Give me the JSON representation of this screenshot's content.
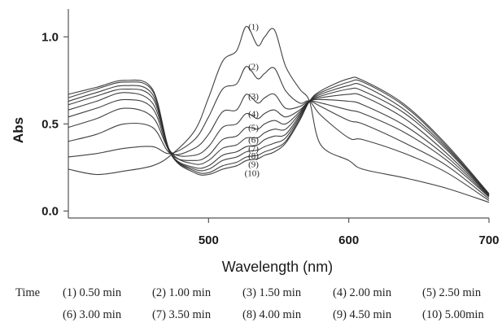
{
  "chart_data": {
    "type": "line",
    "xlabel": "Wavelength (nm)",
    "ylabel": "Abs",
    "xlim": [
      400,
      700
    ],
    "ylim": [
      -0.04,
      1.16
    ],
    "xticks": [
      "500",
      "600",
      "700"
    ],
    "yticks": [
      "0.0",
      "0.5",
      "1.0"
    ],
    "grid": false,
    "legend_position": "bottom",
    "series_color": "#2b2b2b",
    "x": [
      400,
      420,
      440,
      460,
      473,
      490,
      500,
      510,
      520,
      527,
      535,
      540,
      547,
      555,
      565,
      572,
      580,
      600,
      610,
      640,
      670,
      700
    ],
    "series": [
      {
        "name": "(1)",
        "values": [
          0.24,
          0.21,
          0.23,
          0.26,
          0.32,
          0.46,
          0.65,
          0.86,
          0.92,
          1.06,
          0.95,
          1.0,
          1.04,
          0.83,
          0.7,
          0.63,
          0.38,
          0.29,
          0.24,
          0.19,
          0.13,
          0.05
        ]
      },
      {
        "name": "(2)",
        "values": [
          0.31,
          0.33,
          0.36,
          0.37,
          0.33,
          0.41,
          0.54,
          0.7,
          0.73,
          0.83,
          0.76,
          0.79,
          0.82,
          0.69,
          0.62,
          0.63,
          0.55,
          0.42,
          0.41,
          0.33,
          0.22,
          0.06
        ]
      },
      {
        "name": "(3)",
        "values": [
          0.4,
          0.44,
          0.5,
          0.48,
          0.33,
          0.36,
          0.44,
          0.57,
          0.58,
          0.67,
          0.62,
          0.65,
          0.67,
          0.59,
          0.6,
          0.63,
          0.6,
          0.52,
          0.5,
          0.39,
          0.26,
          0.07
        ]
      },
      {
        "name": "(4)",
        "values": [
          0.48,
          0.53,
          0.59,
          0.54,
          0.34,
          0.32,
          0.37,
          0.48,
          0.5,
          0.56,
          0.53,
          0.56,
          0.58,
          0.54,
          0.58,
          0.63,
          0.62,
          0.58,
          0.56,
          0.45,
          0.29,
          0.08
        ]
      },
      {
        "name": "(5)",
        "values": [
          0.54,
          0.59,
          0.64,
          0.59,
          0.33,
          0.29,
          0.32,
          0.41,
          0.43,
          0.48,
          0.47,
          0.5,
          0.52,
          0.5,
          0.57,
          0.63,
          0.64,
          0.63,
          0.61,
          0.49,
          0.31,
          0.085
        ]
      },
      {
        "name": "(6)",
        "values": [
          0.58,
          0.63,
          0.68,
          0.62,
          0.34,
          0.27,
          0.29,
          0.36,
          0.38,
          0.42,
          0.42,
          0.45,
          0.47,
          0.47,
          0.56,
          0.63,
          0.65,
          0.67,
          0.66,
          0.53,
          0.33,
          0.09
        ]
      },
      {
        "name": "(7)",
        "values": [
          0.61,
          0.66,
          0.7,
          0.65,
          0.33,
          0.25,
          0.26,
          0.32,
          0.34,
          0.37,
          0.38,
          0.41,
          0.43,
          0.44,
          0.55,
          0.63,
          0.66,
          0.7,
          0.69,
          0.56,
          0.35,
          0.09
        ]
      },
      {
        "name": "(8)",
        "values": [
          0.63,
          0.68,
          0.72,
          0.67,
          0.33,
          0.24,
          0.24,
          0.29,
          0.31,
          0.34,
          0.35,
          0.37,
          0.39,
          0.42,
          0.54,
          0.63,
          0.67,
          0.72,
          0.72,
          0.58,
          0.36,
          0.095
        ]
      },
      {
        "name": "(9)",
        "values": [
          0.65,
          0.7,
          0.74,
          0.69,
          0.33,
          0.23,
          0.22,
          0.26,
          0.28,
          0.31,
          0.32,
          0.34,
          0.36,
          0.4,
          0.53,
          0.63,
          0.68,
          0.74,
          0.74,
          0.6,
          0.37,
          0.095
        ]
      },
      {
        "name": "(10)",
        "values": [
          0.67,
          0.71,
          0.75,
          0.7,
          0.33,
          0.22,
          0.21,
          0.24,
          0.26,
          0.29,
          0.3,
          0.32,
          0.34,
          0.39,
          0.52,
          0.63,
          0.69,
          0.76,
          0.75,
          0.61,
          0.38,
          0.1
        ]
      }
    ],
    "curve_labels": [
      {
        "text": "(1)",
        "x": 532,
        "y": 1.06
      },
      {
        "text": "(2)",
        "x": 532,
        "y": 0.83
      },
      {
        "text": "(3)",
        "x": 532,
        "y": 0.66
      },
      {
        "text": "(4)",
        "x": 532,
        "y": 0.56
      },
      {
        "text": "(5)",
        "x": 532,
        "y": 0.48
      },
      {
        "text": "(6)",
        "x": 532,
        "y": 0.41
      },
      {
        "text": "(7)",
        "x": 532,
        "y": 0.36
      },
      {
        "text": "(8)",
        "x": 532,
        "y": 0.32
      },
      {
        "text": "(9)",
        "x": 532,
        "y": 0.27
      },
      {
        "text": "(10)",
        "x": 531,
        "y": 0.22
      }
    ]
  },
  "legend": {
    "time_label": "Time",
    "row1": [
      "(1) 0.50 min",
      "(2) 1.00 min",
      "(3) 1.50 min",
      "(4) 2.00 min",
      "(5) 2.50 min"
    ],
    "row2": [
      "(6) 3.00 min",
      "(7) 3.50 min",
      "(8) 4.00 min",
      "(9) 4.50 min",
      "(10) 5.00min"
    ]
  }
}
